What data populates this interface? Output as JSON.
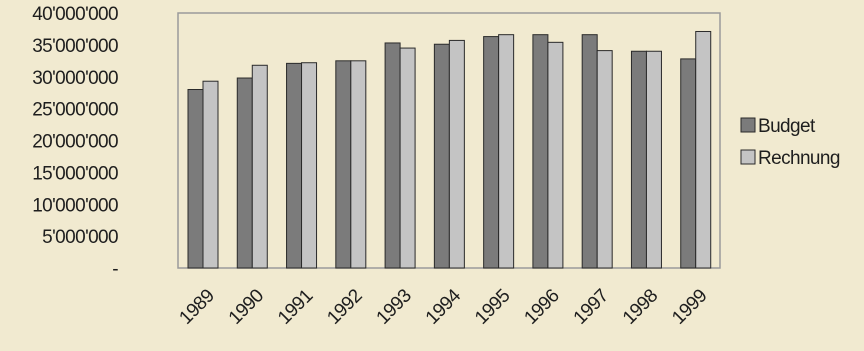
{
  "chart_data": {
    "type": "bar",
    "categories": [
      "1989",
      "1990",
      "1991",
      "1992",
      "1993",
      "1994",
      "1995",
      "1996",
      "1997",
      "1998",
      "1999"
    ],
    "series": [
      {
        "name": "Budget",
        "values": [
          28000000,
          29800000,
          32100000,
          32500000,
          35300000,
          35100000,
          36300000,
          36600000,
          36600000,
          34000000,
          32800000
        ]
      },
      {
        "name": "Rechnung",
        "values": [
          29300000,
          31800000,
          32200000,
          32500000,
          34500000,
          35700000,
          36600000,
          35400000,
          34100000,
          34000000,
          37100000
        ]
      }
    ],
    "y_tick_values": [
      0,
      5000000,
      10000000,
      15000000,
      20000000,
      25000000,
      30000000,
      35000000,
      40000000
    ],
    "y_tick_labels": [
      "-",
      "5'000'000",
      "10'000'000",
      "15'000'000",
      "20'000'000",
      "25'000'000",
      "30'000'000",
      "35'000'000",
      "40'000'000"
    ],
    "ylim": [
      0,
      40000000
    ],
    "title": "",
    "xlabel": "",
    "ylabel": "",
    "legend_position": "right",
    "grid": false,
    "colors": {
      "Budget": "#7b7b7b",
      "Rechnung": "#c4c4c4",
      "plot_border": "#9a9a9a",
      "background": "#f1ead0",
      "bar_outline": "#2a2a2a"
    }
  }
}
